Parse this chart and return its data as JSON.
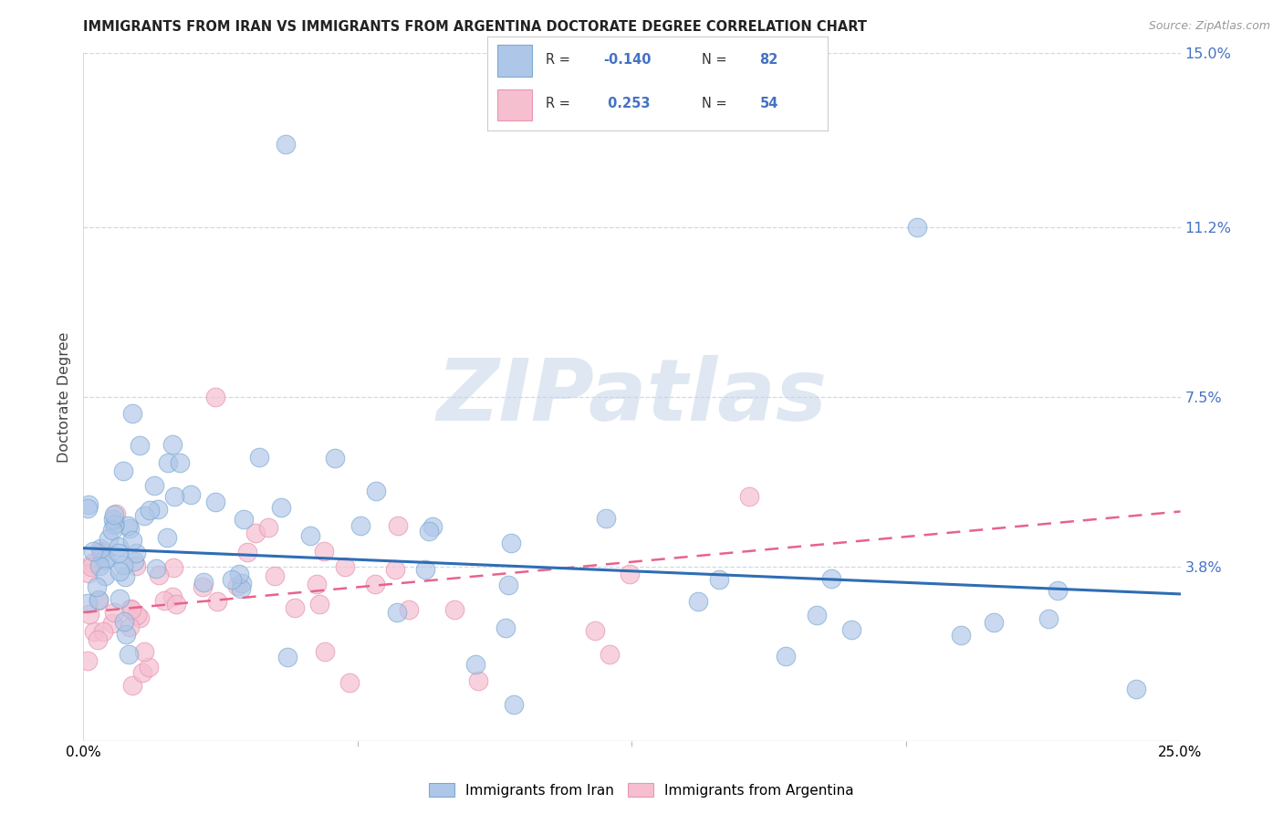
{
  "title": "IMMIGRANTS FROM IRAN VS IMMIGRANTS FROM ARGENTINA DOCTORATE DEGREE CORRELATION CHART",
  "source": "Source: ZipAtlas.com",
  "ylabel": "Doctorate Degree",
  "xlim": [
    0.0,
    0.25
  ],
  "ylim": [
    0.0,
    0.15
  ],
  "ytick_positions": [
    0.0,
    0.038,
    0.075,
    0.112,
    0.15
  ],
  "ytick_labels": [
    "",
    "3.8%",
    "7.5%",
    "11.2%",
    "15.0%"
  ],
  "iran_fill_color": "#aec6e8",
  "iran_edge_color": "#7aaad0",
  "iran_line_color": "#2f6db5",
  "argentina_fill_color": "#f5bfd0",
  "argentina_edge_color": "#e896b2",
  "argentina_line_color": "#e8638a",
  "iran_R": -0.14,
  "iran_N": 82,
  "argentina_R": 0.253,
  "argentina_N": 54,
  "iran_line_x0": 0.0,
  "iran_line_y0": 0.042,
  "iran_line_x1": 0.25,
  "iran_line_y1": 0.032,
  "arg_line_x0": 0.0,
  "arg_line_y0": 0.028,
  "arg_line_x1": 0.25,
  "arg_line_y1": 0.05,
  "watermark": "ZIPatlas",
  "background_color": "#ffffff",
  "grid_color": "#d0d8e8"
}
